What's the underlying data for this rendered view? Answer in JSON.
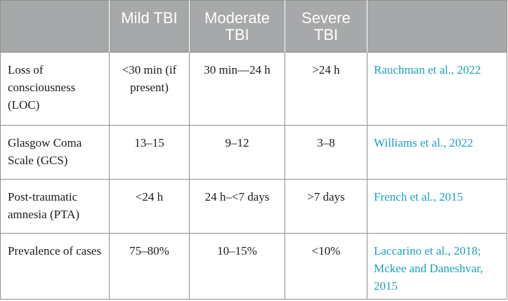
{
  "table": {
    "headers": [
      "",
      "Mild TBI",
      "Moderate TBI",
      "Severe TBI",
      ""
    ],
    "rows": [
      {
        "feature": "Loss of consciousness (LOC)",
        "mild": "<30 min (if present)",
        "moderate": "30 min—24 h",
        "severe": ">24 h",
        "reference": "Rauchman et al., 2022"
      },
      {
        "feature": "Glasgow Coma Scale (GCS)",
        "mild": "13–15",
        "moderate": "9–12",
        "severe": "3–8",
        "reference": "Williams et al., 2022"
      },
      {
        "feature": "Post-traumatic amnesia (PTA)",
        "mild": "<24 h",
        "moderate": "24 h–<7 days",
        "severe": ">7 days",
        "reference": "French et al., 2015"
      },
      {
        "feature": "Prevalence of cases",
        "mild": "75–80%",
        "moderate": "10–15%",
        "severe": "<10%",
        "reference": "Laccarino et al., 2018; Mckee and Daneshvar, 2015"
      }
    ]
  },
  "colors": {
    "header_background": "#a6a8aa",
    "header_text": "#ffffff",
    "body_text": "#1a1a1a",
    "citation_link": "#1a9fbf",
    "grid_line": "#8f8f8f"
  }
}
